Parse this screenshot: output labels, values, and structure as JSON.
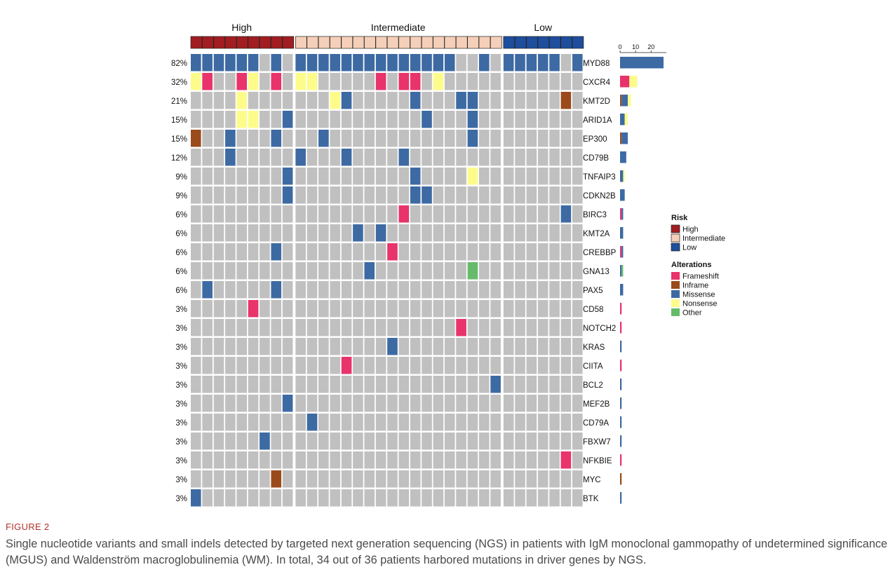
{
  "figure": {
    "label": "FIGURE 2",
    "caption": "Single nucleotide variants and small indels detected by targeted next generation sequencing (NGS) in patients with IgM monoclonal gammopathy of undetermined significance (MGUS) and Waldenström macroglobulinemia (WM). In total, 34 out of 36 patients harbored mutations in driver genes by NGS."
  },
  "colors": {
    "background_cell": "#c0c0c0",
    "Frameshift": "#e8336b",
    "Inframe": "#9b4a1c",
    "Missense": "#3d6aa3",
    "Nonsense": "#fdfc8b",
    "Other": "#66bb6a",
    "High": "#a11d21",
    "Intermediate": "#f5cfb8",
    "Low": "#1e4e9c"
  },
  "chart_data": {
    "type": "heatmap",
    "risk_groups": [
      {
        "name": "High",
        "count": 9
      },
      {
        "name": "Intermediate",
        "count": 18
      },
      {
        "name": "Low",
        "count": 7
      }
    ],
    "barplot_axis": {
      "ticks": [
        "0",
        "10",
        "20"
      ],
      "max": 28
    },
    "legend": {
      "risk_title": "Risk",
      "risk_items": [
        "High",
        "Intermediate",
        "Low"
      ],
      "alteration_title": "Alterations",
      "alteration_items": [
        "Frameshift",
        "Inframe",
        "Missense",
        "Nonsense",
        "Other"
      ],
      "placement": "right"
    },
    "genes": [
      {
        "name": "MYD88",
        "percent": "82%",
        "alterations": [
          {
            "sample": 0,
            "type": "Missense"
          },
          {
            "sample": 1,
            "type": "Missense"
          },
          {
            "sample": 2,
            "type": "Missense"
          },
          {
            "sample": 3,
            "type": "Missense"
          },
          {
            "sample": 4,
            "type": "Missense"
          },
          {
            "sample": 5,
            "type": "Missense"
          },
          {
            "sample": 7,
            "type": "Missense"
          },
          {
            "sample": 9,
            "type": "Missense"
          },
          {
            "sample": 10,
            "type": "Missense"
          },
          {
            "sample": 11,
            "type": "Missense"
          },
          {
            "sample": 12,
            "type": "Missense"
          },
          {
            "sample": 13,
            "type": "Missense"
          },
          {
            "sample": 14,
            "type": "Missense"
          },
          {
            "sample": 15,
            "type": "Missense"
          },
          {
            "sample": 16,
            "type": "Missense"
          },
          {
            "sample": 17,
            "type": "Missense"
          },
          {
            "sample": 18,
            "type": "Missense"
          },
          {
            "sample": 19,
            "type": "Missense"
          },
          {
            "sample": 20,
            "type": "Missense"
          },
          {
            "sample": 21,
            "type": "Missense"
          },
          {
            "sample": 22,
            "type": "Missense"
          },
          {
            "sample": 25,
            "type": "Missense"
          },
          {
            "sample": 27,
            "type": "Missense"
          },
          {
            "sample": 28,
            "type": "Missense"
          },
          {
            "sample": 29,
            "type": "Missense"
          },
          {
            "sample": 30,
            "type": "Missense"
          },
          {
            "sample": 31,
            "type": "Missense"
          },
          {
            "sample": 33,
            "type": "Missense"
          }
        ]
      },
      {
        "name": "CXCR4",
        "percent": "32%",
        "alterations": [
          {
            "sample": 0,
            "type": "Nonsense"
          },
          {
            "sample": 1,
            "type": "Frameshift"
          },
          {
            "sample": 4,
            "type": "Frameshift"
          },
          {
            "sample": 5,
            "type": "Nonsense"
          },
          {
            "sample": 7,
            "type": "Frameshift"
          },
          {
            "sample": 9,
            "type": "Nonsense"
          },
          {
            "sample": 10,
            "type": "Nonsense"
          },
          {
            "sample": 16,
            "type": "Frameshift"
          },
          {
            "sample": 18,
            "type": "Frameshift"
          },
          {
            "sample": 19,
            "type": "Frameshift"
          },
          {
            "sample": 21,
            "type": "Nonsense"
          }
        ]
      },
      {
        "name": "KMT2D",
        "percent": "21%",
        "alterations": [
          {
            "sample": 4,
            "type": "Nonsense"
          },
          {
            "sample": 12,
            "type": "Nonsense"
          },
          {
            "sample": 13,
            "type": "Missense"
          },
          {
            "sample": 19,
            "type": "Missense"
          },
          {
            "sample": 23,
            "type": "Missense"
          },
          {
            "sample": 24,
            "type": "Missense"
          },
          {
            "sample": 32,
            "type": "Inframe"
          }
        ]
      },
      {
        "name": "ARID1A",
        "percent": "15%",
        "alterations": [
          {
            "sample": 4,
            "type": "Nonsense"
          },
          {
            "sample": 5,
            "type": "Nonsense"
          },
          {
            "sample": 8,
            "type": "Missense"
          },
          {
            "sample": 20,
            "type": "Missense"
          },
          {
            "sample": 24,
            "type": "Missense"
          }
        ]
      },
      {
        "name": "EP300",
        "percent": "15%",
        "alterations": [
          {
            "sample": 0,
            "type": "Inframe"
          },
          {
            "sample": 3,
            "type": "Missense"
          },
          {
            "sample": 7,
            "type": "Missense"
          },
          {
            "sample": 11,
            "type": "Missense"
          },
          {
            "sample": 24,
            "type": "Missense"
          }
        ]
      },
      {
        "name": "CD79B",
        "percent": "12%",
        "alterations": [
          {
            "sample": 3,
            "type": "Missense"
          },
          {
            "sample": 9,
            "type": "Missense"
          },
          {
            "sample": 13,
            "type": "Missense"
          },
          {
            "sample": 18,
            "type": "Missense"
          }
        ]
      },
      {
        "name": "TNFAIP3",
        "percent": "9%",
        "alterations": [
          {
            "sample": 8,
            "type": "Missense"
          },
          {
            "sample": 19,
            "type": "Missense"
          },
          {
            "sample": 24,
            "type": "Nonsense"
          }
        ]
      },
      {
        "name": "CDKN2B",
        "percent": "9%",
        "alterations": [
          {
            "sample": 8,
            "type": "Missense"
          },
          {
            "sample": 19,
            "type": "Missense"
          },
          {
            "sample": 20,
            "type": "Missense"
          }
        ]
      },
      {
        "name": "BIRC3",
        "percent": "6%",
        "alterations": [
          {
            "sample": 18,
            "type": "Frameshift"
          },
          {
            "sample": 32,
            "type": "Missense"
          }
        ]
      },
      {
        "name": "KMT2A",
        "percent": "6%",
        "alterations": [
          {
            "sample": 14,
            "type": "Missense"
          },
          {
            "sample": 16,
            "type": "Missense"
          }
        ]
      },
      {
        "name": "CREBBP",
        "percent": "6%",
        "alterations": [
          {
            "sample": 7,
            "type": "Missense"
          },
          {
            "sample": 17,
            "type": "Frameshift"
          }
        ]
      },
      {
        "name": "GNA13",
        "percent": "6%",
        "alterations": [
          {
            "sample": 15,
            "type": "Missense"
          },
          {
            "sample": 24,
            "type": "Other"
          }
        ]
      },
      {
        "name": "PAX5",
        "percent": "6%",
        "alterations": [
          {
            "sample": 1,
            "type": "Missense"
          },
          {
            "sample": 7,
            "type": "Missense"
          }
        ]
      },
      {
        "name": "CD58",
        "percent": "3%",
        "alterations": [
          {
            "sample": 5,
            "type": "Frameshift"
          }
        ]
      },
      {
        "name": "NOTCH2",
        "percent": "3%",
        "alterations": [
          {
            "sample": 23,
            "type": "Frameshift"
          }
        ]
      },
      {
        "name": "KRAS",
        "percent": "3%",
        "alterations": [
          {
            "sample": 17,
            "type": "Missense"
          }
        ]
      },
      {
        "name": "CIITA",
        "percent": "3%",
        "alterations": [
          {
            "sample": 13,
            "type": "Frameshift"
          }
        ]
      },
      {
        "name": "BCL2",
        "percent": "3%",
        "alterations": [
          {
            "sample": 26,
            "type": "Missense"
          }
        ]
      },
      {
        "name": "MEF2B",
        "percent": "3%",
        "alterations": [
          {
            "sample": 8,
            "type": "Missense"
          }
        ]
      },
      {
        "name": "CD79A",
        "percent": "3%",
        "alterations": [
          {
            "sample": 10,
            "type": "Missense"
          }
        ]
      },
      {
        "name": "FBXW7",
        "percent": "3%",
        "alterations": [
          {
            "sample": 6,
            "type": "Missense"
          }
        ]
      },
      {
        "name": "NFKBIE",
        "percent": "3%",
        "alterations": [
          {
            "sample": 32,
            "type": "Frameshift"
          }
        ]
      },
      {
        "name": "MYC",
        "percent": "3%",
        "alterations": [
          {
            "sample": 7,
            "type": "Inframe"
          }
        ]
      },
      {
        "name": "BTK",
        "percent": "3%",
        "alterations": [
          {
            "sample": 0,
            "type": "Missense"
          }
        ]
      }
    ]
  }
}
